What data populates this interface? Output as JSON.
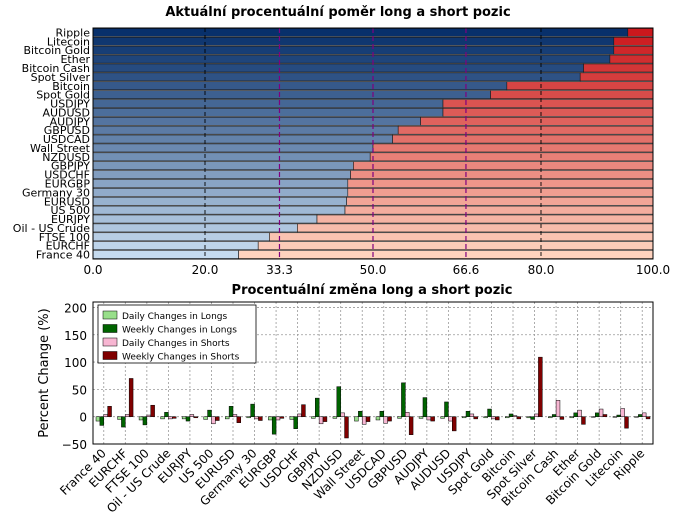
{
  "chart_data": [
    {
      "type": "bar",
      "orientation": "horizontal",
      "stacked": true,
      "title": "Aktuální procentuální poměr long a short pozic",
      "categories": [
        "Ripple",
        "Litecoin",
        "Bitcoin Gold",
        "Ether",
        "Bitcoin Cash",
        "Spot Silver",
        "Bitcoin",
        "Spot Gold",
        "USDJPY",
        "AUDUSD",
        "AUDJPY",
        "GBPUSD",
        "USDCAD",
        "Wall Street",
        "NZDUSD",
        "GBPJPY",
        "USDCHF",
        "EURGBP",
        "Germany 30",
        "EURUSD",
        "US 500",
        "EURJPY",
        "Oil - US Crude",
        "FTSE 100",
        "EURCHF",
        "France 40"
      ],
      "long_values": [
        95.5,
        93.0,
        93.0,
        92.3,
        87.6,
        87.0,
        73.9,
        71.0,
        62.5,
        62.5,
        58.5,
        54.5,
        53.5,
        50.0,
        49.5,
        46.5,
        46.0,
        45.5,
        45.5,
        45.3,
        45.0,
        40.0,
        36.5,
        31.5,
        29.5,
        26.0
      ],
      "xlim": [
        0,
        100
      ],
      "xticks": [
        "0.0",
        "20.0",
        "33.3",
        "50.0",
        "66.6",
        "80.0",
        "100.0"
      ],
      "reference_lines": [
        33.3,
        50.0,
        66.6
      ],
      "grid": true
    },
    {
      "type": "bar",
      "title": "Procentuální změna long a short pozic",
      "ylabel": "Percent Change (%)",
      "ylim": [
        -50,
        210
      ],
      "yticks": [
        "200",
        "150",
        "100",
        "50",
        "0",
        "−50"
      ],
      "categories": [
        "France 40",
        "EURCHF",
        "FTSE 100",
        "Oil - US Crude",
        "EURJPY",
        "US 500",
        "EURUSD",
        "Germany 30",
        "EURGBP",
        "USDCHF",
        "GBPJPY",
        "NZDUSD",
        "Wall Street",
        "USDCAD",
        "GBPUSD",
        "AUDJPY",
        "AUDUSD",
        "USDJPY",
        "Spot Gold",
        "Bitcoin",
        "Spot Silver",
        "Bitcoin Cash",
        "Ether",
        "Bitcoin Gold",
        "Litecoin",
        "Ripple"
      ],
      "legend_position": "top-left",
      "series": [
        {
          "name": "Daily Changes in Longs",
          "color": "#98df8a",
          "values": [
            -8,
            -5,
            -6,
            -4,
            -4,
            -5,
            -4,
            -2,
            -6,
            -5,
            -3,
            -3,
            -8,
            -6,
            -3,
            -3,
            -3,
            -2,
            -2,
            -2,
            -2,
            -2,
            -2,
            -1,
            -1,
            -1
          ]
        },
        {
          "name": "Weekly Changes in Longs",
          "color": "#006400",
          "values": [
            -16,
            -19,
            -15,
            8,
            -8,
            12,
            19,
            23,
            -32,
            -22,
            34,
            55,
            10,
            10,
            62,
            35,
            27,
            10,
            14,
            5,
            -5,
            4,
            7,
            7,
            3,
            4
          ]
        },
        {
          "name": "Daily Changes in Shorts",
          "color": "#f7b6d2",
          "values": [
            4,
            4,
            3,
            -4,
            4,
            -13,
            4,
            -4,
            -6,
            5,
            -13,
            7,
            -14,
            -12,
            8,
            -6,
            -8,
            5,
            -4,
            2,
            5,
            30,
            12,
            14,
            15,
            7
          ]
        },
        {
          "name": "Weekly Changes in Shorts",
          "color": "#800000",
          "values": [
            19,
            70,
            21,
            -3,
            -2,
            -7,
            -11,
            -7,
            -3,
            22,
            -9,
            -39,
            -9,
            -8,
            -33,
            -8,
            -26,
            -4,
            -6,
            -4,
            109,
            -5,
            -14,
            4,
            -21,
            -4
          ]
        }
      ]
    }
  ]
}
